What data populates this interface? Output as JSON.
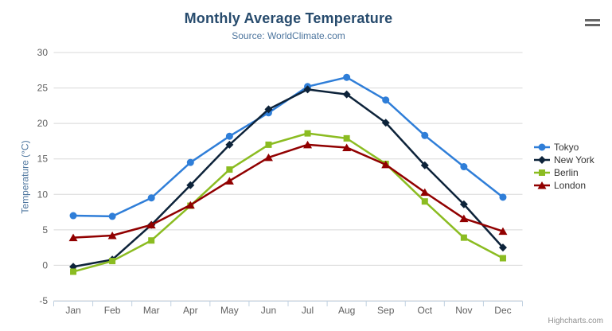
{
  "header": {
    "title": "Monthly Average Temperature",
    "subtitle": "Source: WorldClimate.com"
  },
  "y_axis": {
    "title": "Temperature (°C)"
  },
  "credits": {
    "label": "Highcharts.com"
  },
  "export_menu": {
    "icon": "hamburger-icon"
  },
  "colors": {
    "title": "#274b6d",
    "subtitle": "#4d759e",
    "axis_title": "#4d759e",
    "tick_label": "#606060",
    "grid_line": "#d8d8d8",
    "axis_line": "#c0d0e0",
    "legend_label": "#333333",
    "credits": "#909090",
    "hamburger": "#666666",
    "background": "#ffffff"
  },
  "chart_data": {
    "type": "line",
    "title": "Monthly Average Temperature",
    "subtitle": "Source: WorldClimate.com",
    "xlabel": "",
    "ylabel": "Temperature (°C)",
    "categories": [
      "Jan",
      "Feb",
      "Mar",
      "Apr",
      "May",
      "Jun",
      "Jul",
      "Aug",
      "Sep",
      "Oct",
      "Nov",
      "Dec"
    ],
    "series": [
      {
        "name": "Tokyo",
        "color": "#2f7ed8",
        "marker": "circle",
        "values": [
          7.0,
          6.9,
          9.5,
          14.5,
          18.2,
          21.5,
          25.2,
          26.5,
          23.3,
          18.3,
          13.9,
          9.6
        ]
      },
      {
        "name": "New York",
        "color": "#0d233a",
        "marker": "diamond",
        "values": [
          -0.2,
          0.8,
          5.7,
          11.3,
          17.0,
          22.0,
          24.8,
          24.1,
          20.1,
          14.1,
          8.6,
          2.5
        ]
      },
      {
        "name": "Berlin",
        "color": "#8bbc21",
        "marker": "square",
        "values": [
          -0.9,
          0.6,
          3.5,
          8.4,
          13.5,
          17.0,
          18.6,
          17.9,
          14.3,
          9.0,
          3.9,
          1.0
        ]
      },
      {
        "name": "London",
        "color": "#910000",
        "marker": "triangle",
        "values": [
          3.9,
          4.2,
          5.7,
          8.5,
          11.9,
          15.2,
          17.0,
          16.6,
          14.2,
          10.3,
          6.6,
          4.8
        ]
      }
    ],
    "ylim": [
      -5,
      30
    ],
    "ytick_interval": 5,
    "grid": true,
    "legend_position": "right"
  }
}
